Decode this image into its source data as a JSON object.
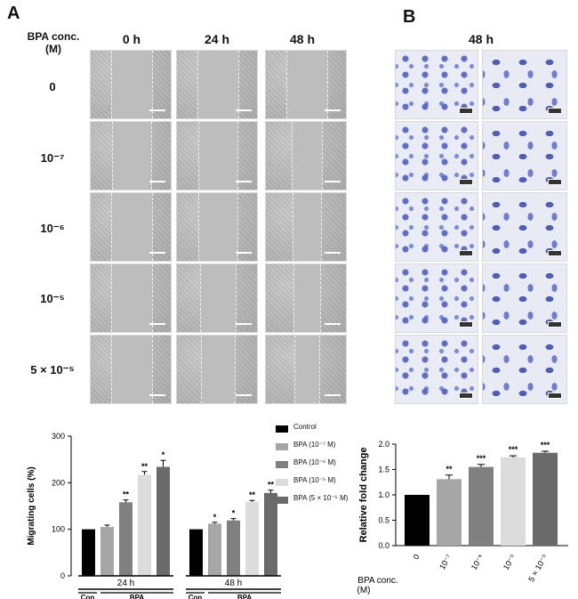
{
  "panel_a_label": "A",
  "panel_b_label": "B",
  "wound": {
    "conc_header": "BPA conc.\n(M)",
    "time_headers": [
      "0 h",
      "24 h",
      "48 h"
    ],
    "row_labels": [
      "0",
      "10⁻⁷",
      "10⁻⁶",
      "10⁻⁵",
      "5 × 10⁻⁵"
    ]
  },
  "transwell": {
    "header": "48 h"
  },
  "chart_data": [
    {
      "type": "bar",
      "ylabel": "Migrating cells (%)",
      "ylim": [
        0,
        300
      ],
      "yticks": [
        0,
        100,
        200,
        300
      ],
      "groups": [
        "24 h",
        "48 h"
      ],
      "group_sublabels": [
        "Con",
        "BPA"
      ],
      "legend": [
        "Control",
        "BPA (10⁻⁷ M)",
        "BPA (10⁻⁶ M)",
        "BPA (10⁻⁵ M)",
        "BPA (5 × 10⁻⁵ M)"
      ],
      "legend_placement": "top-right",
      "colors": [
        "#000000",
        "#a6a6a6",
        "#808080",
        "#dcdcdc",
        "#6a6a6a"
      ],
      "series": [
        {
          "name": "Control",
          "values": [
            100,
            100
          ],
          "errors": [
            0,
            0
          ],
          "sig": [
            "",
            ""
          ]
        },
        {
          "name": "BPA (10⁻⁷ M)",
          "values": [
            105,
            112
          ],
          "errors": [
            4,
            3
          ],
          "sig": [
            "",
            "*"
          ]
        },
        {
          "name": "BPA (10⁻⁶ M)",
          "values": [
            158,
            119
          ],
          "errors": [
            5,
            4
          ],
          "sig": [
            "**",
            "*"
          ]
        },
        {
          "name": "BPA (10⁻⁵ M)",
          "values": [
            217,
            159
          ],
          "errors": [
            7,
            3
          ],
          "sig": [
            "**",
            "**"
          ]
        },
        {
          "name": "BPA (5 × 10⁻⁵ M)",
          "values": [
            234,
            178
          ],
          "errors": [
            14,
            6
          ],
          "sig": [
            "*",
            "**"
          ]
        }
      ]
    },
    {
      "type": "bar",
      "ylabel": "Relative fold change",
      "ylim": [
        0,
        2.0
      ],
      "yticks": [
        0,
        0.5,
        1.0,
        1.5,
        2.0
      ],
      "xlabel": "BPA conc.\n(M)",
      "categories": [
        "0",
        "10⁻⁷",
        "10⁻⁶",
        "10⁻⁵",
        "5 × 10⁻⁵"
      ],
      "values": [
        1.0,
        1.31,
        1.55,
        1.74,
        1.83
      ],
      "errors": [
        0,
        0.08,
        0.05,
        0.03,
        0.03
      ],
      "sig": [
        "",
        "**",
        "***",
        "***",
        "***"
      ],
      "colors": [
        "#000000",
        "#a6a6a6",
        "#808080",
        "#dcdcdc",
        "#6a6a6a"
      ]
    }
  ]
}
